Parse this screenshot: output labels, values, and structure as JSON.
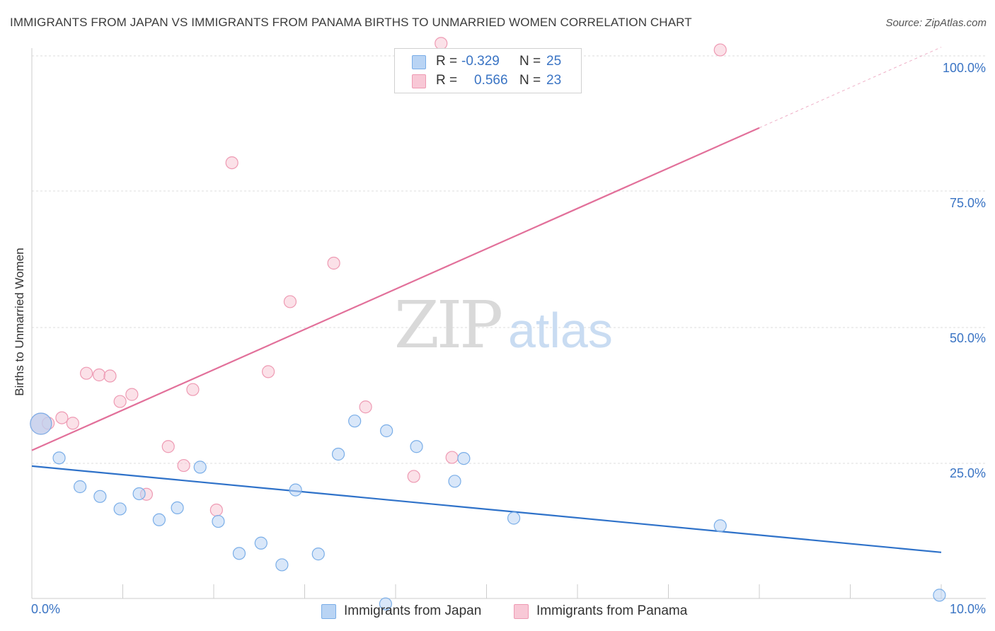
{
  "header": {
    "title": "IMMIGRANTS FROM JAPAN VS IMMIGRANTS FROM PANAMA BIRTHS TO UNMARRIED WOMEN CORRELATION CHART",
    "source": "Source: ZipAtlas.com"
  },
  "watermark": {
    "zip": "ZIP",
    "atlas": "atlas"
  },
  "colors": {
    "japan_fill": "#b9d4f4",
    "japan_stroke": "#7aaee8",
    "japan_line": "#2f72c9",
    "panama_fill": "#f8c8d6",
    "panama_stroke": "#ee9ab3",
    "panama_line": "#e2709a",
    "tick_label": "#3a74c4",
    "grid": "#dcdcdc"
  },
  "legend": {
    "rows": [
      {
        "r_label": "R =",
        "r_value": "-0.329",
        "n_label": "N =",
        "n_value": "25"
      },
      {
        "r_label": "R =",
        "r_value": "0.566",
        "n_label": "N =",
        "n_value": "23"
      }
    ]
  },
  "chart_data": {
    "type": "scatter",
    "title": "IMMIGRANTS FROM JAPAN VS IMMIGRANTS FROM PANAMA BIRTHS TO UNMARRIED WOMEN CORRELATION CHART",
    "xlabel": "",
    "ylabel": "Births to Unmarried Women",
    "xlim": [
      0,
      10
    ],
    "ylim": [
      0,
      100
    ],
    "x_tick_labels": [
      "0.0%",
      "10.0%"
    ],
    "y_tick_labels": [
      "25.0%",
      "50.0%",
      "75.0%",
      "100.0%"
    ],
    "y_ticks": [
      25,
      50,
      75,
      100
    ],
    "grid": true,
    "legend_position": "top-center",
    "series": [
      {
        "name": "Immigrants from Japan",
        "r": -0.329,
        "n": 25,
        "trend": {
          "x": [
            0,
            10
          ],
          "y": [
            24.4,
            8.5
          ]
        },
        "points": [
          {
            "x": 0.1,
            "y": 32.2,
            "large": true
          },
          {
            "x": 0.3,
            "y": 25.9
          },
          {
            "x": 0.53,
            "y": 20.6
          },
          {
            "x": 0.75,
            "y": 18.8
          },
          {
            "x": 0.97,
            "y": 16.5
          },
          {
            "x": 1.18,
            "y": 19.3
          },
          {
            "x": 1.4,
            "y": 14.5
          },
          {
            "x": 1.6,
            "y": 16.7
          },
          {
            "x": 1.85,
            "y": 24.2
          },
          {
            "x": 2.05,
            "y": 14.2
          },
          {
            "x": 2.28,
            "y": 8.3
          },
          {
            "x": 2.52,
            "y": 10.2
          },
          {
            "x": 2.75,
            "y": 6.2
          },
          {
            "x": 2.9,
            "y": 20.0
          },
          {
            "x": 3.15,
            "y": 8.2
          },
          {
            "x": 3.37,
            "y": 26.6
          },
          {
            "x": 3.55,
            "y": 32.7
          },
          {
            "x": 3.9,
            "y": 30.9
          },
          {
            "x": 3.89,
            "y": -1.0
          },
          {
            "x": 4.23,
            "y": 28.0
          },
          {
            "x": 4.65,
            "y": 21.6
          },
          {
            "x": 4.75,
            "y": 25.8
          },
          {
            "x": 5.3,
            "y": 14.8
          },
          {
            "x": 7.57,
            "y": 13.4
          },
          {
            "x": 9.98,
            "y": 0.6
          }
        ]
      },
      {
        "name": "Immigrants from Panama",
        "r": 0.566,
        "n": 23,
        "trend": {
          "x": [
            0,
            10
          ],
          "y": [
            27.3,
            101.6
          ],
          "solid_until_x": 8.0
        },
        "points": [
          {
            "x": 0.1,
            "y": 32.2,
            "large": true
          },
          {
            "x": 0.18,
            "y": 32.3
          },
          {
            "x": 0.33,
            "y": 33.3
          },
          {
            "x": 0.45,
            "y": 32.3
          },
          {
            "x": 0.6,
            "y": 41.5
          },
          {
            "x": 0.74,
            "y": 41.2
          },
          {
            "x": 0.86,
            "y": 41.0
          },
          {
            "x": 0.97,
            "y": 36.3
          },
          {
            "x": 1.1,
            "y": 37.6
          },
          {
            "x": 1.26,
            "y": 19.2
          },
          {
            "x": 1.5,
            "y": 28.0
          },
          {
            "x": 1.67,
            "y": 24.5
          },
          {
            "x": 1.77,
            "y": 38.5
          },
          {
            "x": 2.03,
            "y": 16.3
          },
          {
            "x": 2.2,
            "y": 80.3
          },
          {
            "x": 2.6,
            "y": 41.8
          },
          {
            "x": 2.84,
            "y": 54.7
          },
          {
            "x": 3.32,
            "y": 61.8
          },
          {
            "x": 3.67,
            "y": 35.3
          },
          {
            "x": 4.2,
            "y": 22.5
          },
          {
            "x": 4.62,
            "y": 26.0
          },
          {
            "x": 4.5,
            "y": 102.3
          },
          {
            "x": 7.57,
            "y": 101.1
          }
        ]
      }
    ]
  }
}
